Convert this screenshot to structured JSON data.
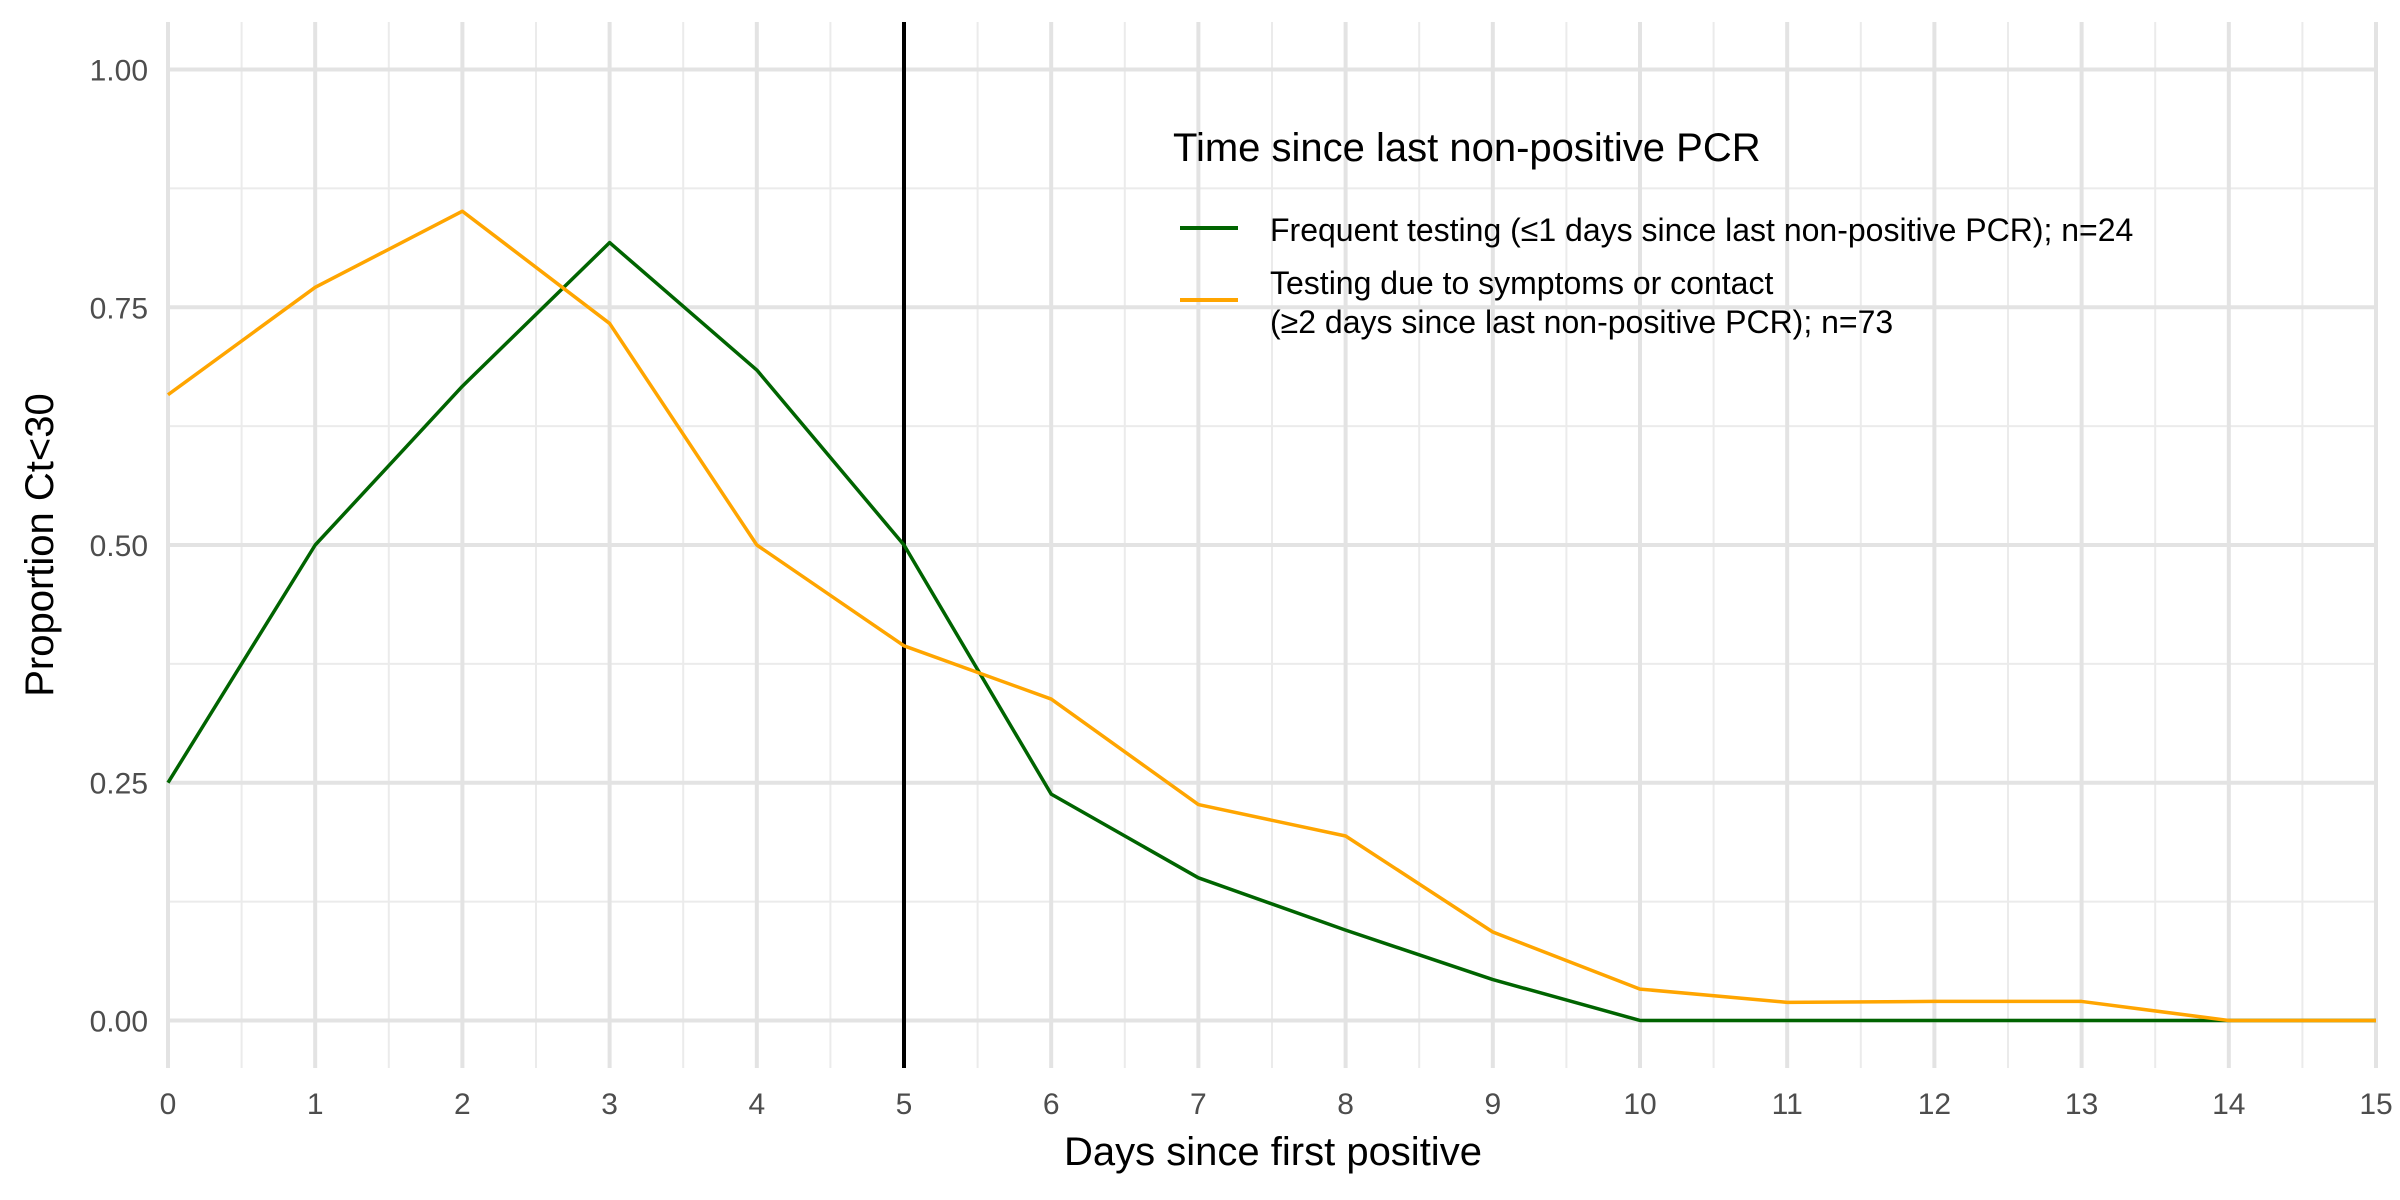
{
  "chart_data": {
    "type": "line",
    "xlabel": "Days since first positive",
    "ylabel": "Proportion Ct<30",
    "xlim": [
      0,
      15
    ],
    "ylim": [
      -0.05,
      1.05
    ],
    "x_ticks": [
      0,
      1,
      2,
      3,
      4,
      5,
      6,
      7,
      8,
      9,
      10,
      11,
      12,
      13,
      14,
      15
    ],
    "x_tick_labels": [
      "0",
      "1",
      "2",
      "3",
      "4",
      "5",
      "6",
      "7",
      "8",
      "9",
      "10",
      "11",
      "12",
      "13",
      "14",
      "15"
    ],
    "y_ticks": [
      0,
      0.25,
      0.5,
      0.75,
      1.0
    ],
    "y_tick_labels": [
      "0.00",
      "0.25",
      "0.50",
      "0.75",
      "1.00"
    ],
    "grid": true,
    "reference_line": {
      "x": 5,
      "color": "#000000"
    },
    "legend": {
      "title": "Time since last non-positive PCR",
      "position": "top-right"
    },
    "x": [
      0,
      1,
      2,
      3,
      4,
      5,
      6,
      7,
      8,
      9,
      10,
      11,
      12,
      13,
      14,
      15
    ],
    "series": [
      {
        "name": "Frequent testing (≤1 days since last non-positive PCR); n=24",
        "label_lines": [
          "Frequent testing (≤1 days since last non-positive PCR); n=24"
        ],
        "color": "#006400",
        "values": [
          0.25,
          0.5,
          0.667,
          0.818,
          0.684,
          0.5,
          0.238,
          0.15,
          0.095,
          0.043,
          0.0,
          0.0,
          0.0,
          0.0,
          0.0,
          0.0
        ]
      },
      {
        "name": "Testing due to symptoms or contact (≥2 days since last non-positive PCR); n=73",
        "label_lines": [
          "Testing due to symptoms or contact",
          "(≥2 days since last non-positive PCR); n=73"
        ],
        "color": "#FFA500",
        "values": [
          0.658,
          0.771,
          0.851,
          0.733,
          0.5,
          0.394,
          0.338,
          0.227,
          0.194,
          0.093,
          0.033,
          0.019,
          0.02,
          0.02,
          0.0,
          0.0
        ]
      }
    ]
  }
}
